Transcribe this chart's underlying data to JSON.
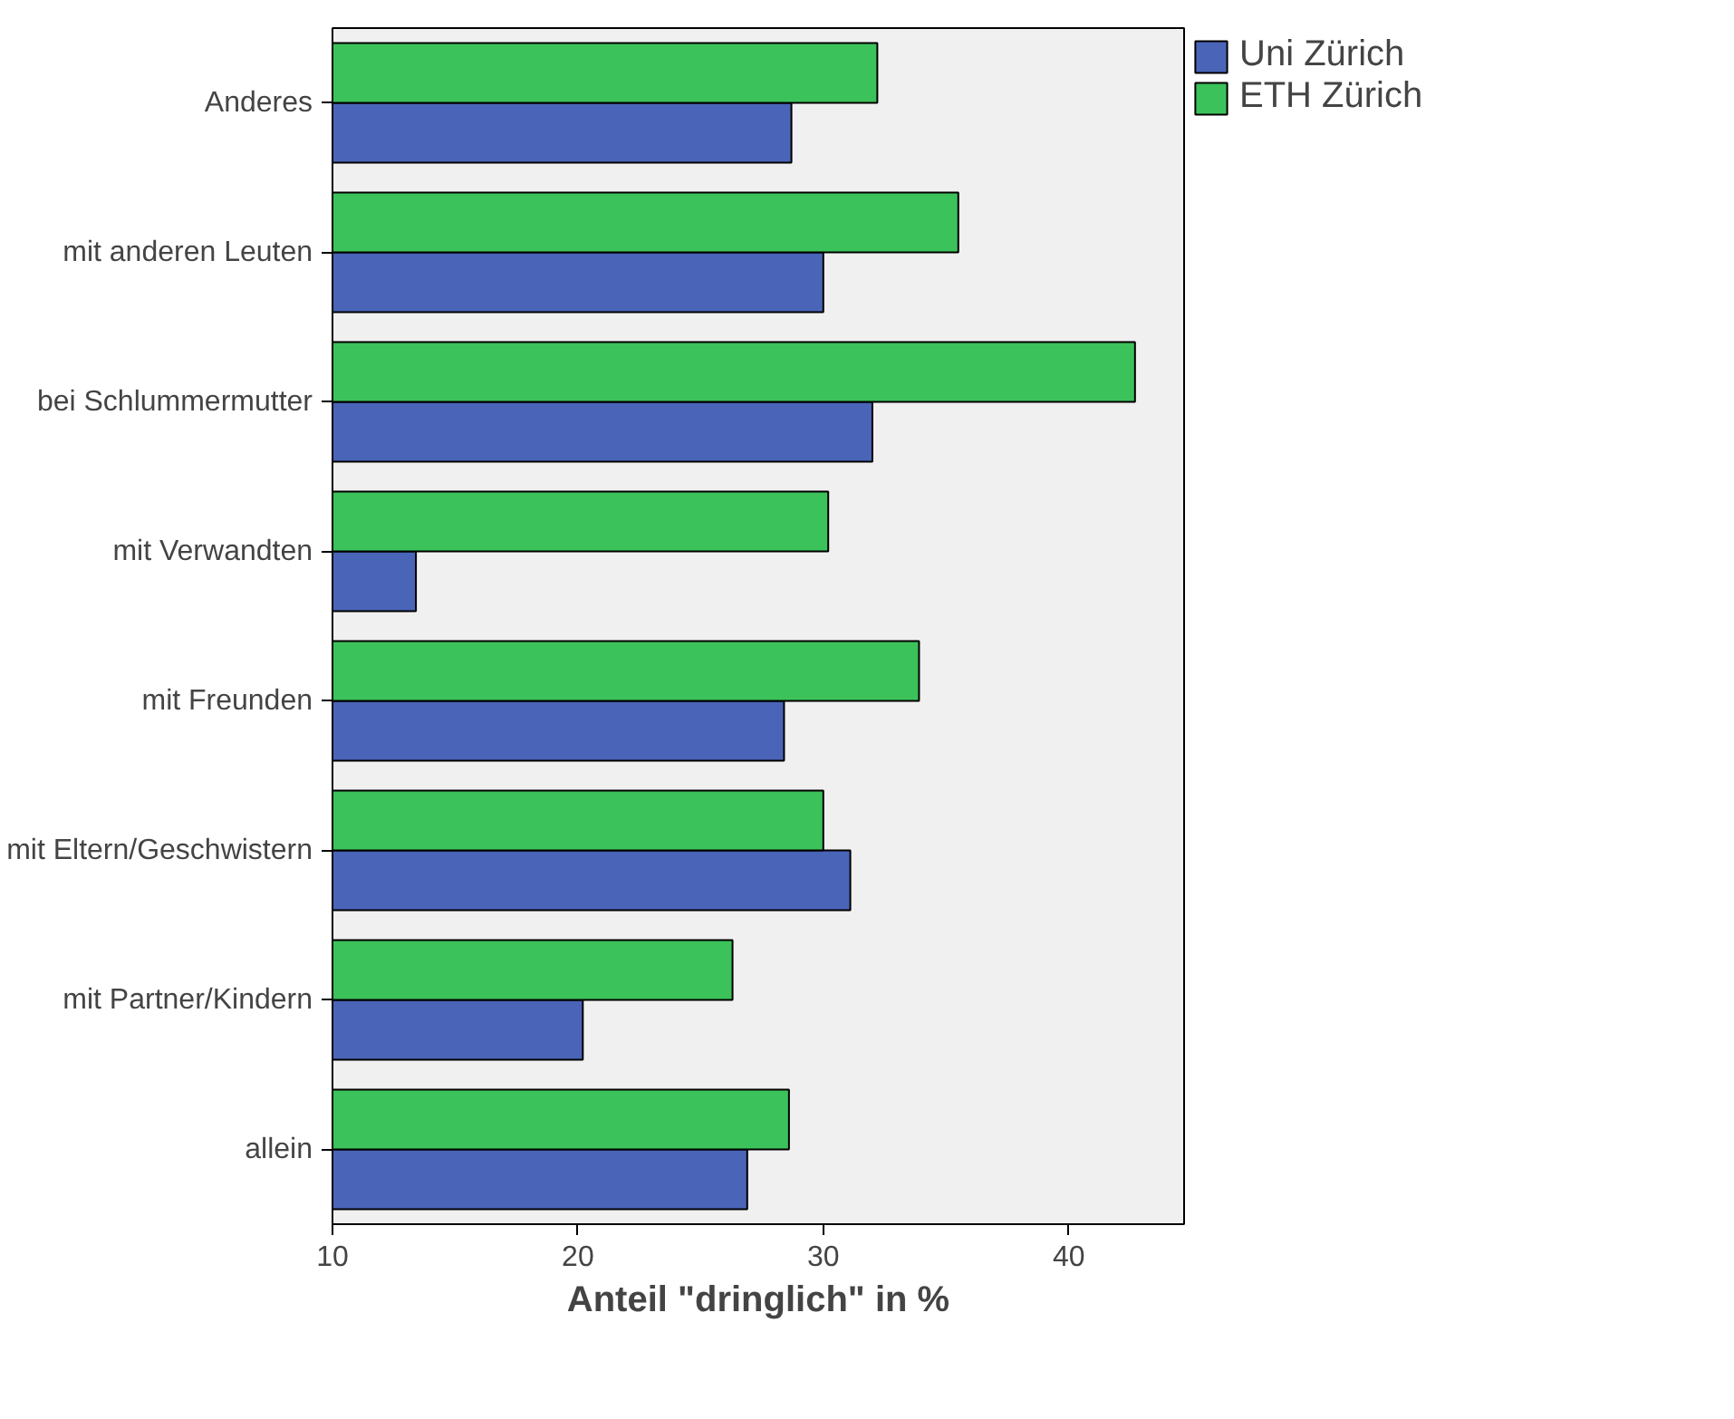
{
  "chart_data": {
    "type": "bar",
    "orientation": "horizontal",
    "xlabel": "Anteil \"dringlich\" in %",
    "categories": [
      "Anderes",
      "mit anderen Leuten",
      "bei Schlummermutter",
      "mit Verwandten",
      "mit Freunden",
      "mit Eltern/Geschwistern",
      "mit Partner/Kindern",
      "allein"
    ],
    "series": [
      {
        "name": "Uni Zürich",
        "color": "#4a64b8",
        "values": [
          28.7,
          30.0,
          32.0,
          13.4,
          28.4,
          31.1,
          20.2,
          26.9
        ]
      },
      {
        "name": "ETH Zürich",
        "color": "#3cc25a",
        "values": [
          32.2,
          35.5,
          42.7,
          30.2,
          33.9,
          30.0,
          26.3,
          28.6
        ]
      }
    ],
    "xlim": [
      10,
      44.7
    ],
    "xticks": [
      10,
      20,
      30,
      40
    ],
    "grid": false,
    "legend": "top right"
  }
}
